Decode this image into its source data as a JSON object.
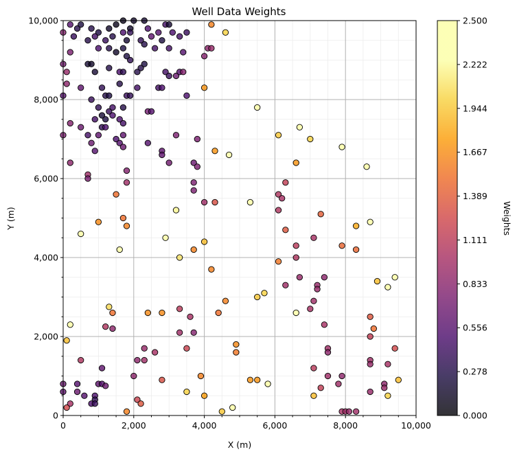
{
  "chart_data": {
    "type": "scatter",
    "title": "Well Data Weights",
    "xlabel": "X (m)",
    "ylabel": "Y (m)",
    "xlim": [
      0,
      10000
    ],
    "ylim": [
      0,
      10000
    ],
    "x_ticks": [
      "0",
      "2,000",
      "4,000",
      "6,000",
      "8,000",
      "10,000"
    ],
    "y_ticks": [
      "0",
      "2,000",
      "4,000",
      "6,000",
      "8,000",
      "10,000"
    ],
    "grid": {
      "major": true,
      "minor": true,
      "major_step": 2000,
      "minor_step": 500
    },
    "colormap": "inferno",
    "colorbar": {
      "label": "Weights",
      "range": [
        0,
        2.5
      ],
      "ticks": [
        "0.000",
        "0.278",
        "0.556",
        "0.833",
        "1.111",
        "1.389",
        "1.667",
        "1.944",
        "2.222",
        "2.500"
      ]
    },
    "points": [
      [
        0,
        9700,
        0.8
      ],
      [
        200,
        9900,
        0.55
      ],
      [
        400,
        9800,
        0.3
      ],
      [
        500,
        9900,
        0.25
      ],
      [
        800,
        9800,
        0.3
      ],
      [
        1000,
        9700,
        0.25
      ],
      [
        1300,
        9800,
        0.15
      ],
      [
        1500,
        9900,
        0.1
      ],
      [
        1700,
        10000,
        0.1
      ],
      [
        1900,
        9800,
        0.15
      ],
      [
        2000,
        10000,
        0.15
      ],
      [
        2300,
        10000,
        0.2
      ],
      [
        2400,
        9800,
        0.5
      ],
      [
        2700,
        9700,
        0.55
      ],
      [
        2900,
        9900,
        0.45
      ],
      [
        3000,
        9900,
        0.2
      ],
      [
        3100,
        9700,
        0.5
      ],
      [
        3500,
        9700,
        0.4
      ],
      [
        4200,
        9900,
        1.6
      ],
      [
        4600,
        9700,
        2.0
      ],
      [
        200,
        9200,
        0.75
      ],
      [
        300,
        9600,
        0.4
      ],
      [
        700,
        9500,
        0.3
      ],
      [
        900,
        9600,
        0.45
      ],
      [
        1200,
        9500,
        0.4
      ],
      [
        1400,
        9600,
        0.3
      ],
      [
        1700,
        9700,
        0.5
      ],
      [
        1900,
        9700,
        0.35
      ],
      [
        2500,
        9600,
        0.6
      ],
      [
        2800,
        9500,
        0.25
      ],
      [
        3300,
        9600,
        0.45
      ],
      [
        1000,
        9300,
        0.5
      ],
      [
        1300,
        9300,
        0.3
      ],
      [
        1500,
        9200,
        0.15
      ],
      [
        1700,
        9300,
        0.25
      ],
      [
        1800,
        9500,
        0.2
      ],
      [
        2200,
        9500,
        0.35
      ],
      [
        2300,
        9400,
        0.3
      ],
      [
        2600,
        9300,
        0.45
      ],
      [
        3000,
        9300,
        0.45
      ],
      [
        3400,
        9200,
        0.55
      ],
      [
        4100,
        9300,
        0.85
      ],
      [
        4200,
        9300,
        0.9
      ],
      [
        4000,
        9100,
        0.8
      ],
      [
        700,
        8900,
        0.2
      ],
      [
        800,
        8900,
        0.15
      ],
      [
        900,
        8700,
        0.2
      ],
      [
        1300,
        8800,
        0.3
      ],
      [
        1600,
        8700,
        0.5
      ],
      [
        1700,
        8700,
        0.35
      ],
      [
        2200,
        8800,
        0.3
      ],
      [
        2300,
        8900,
        0.25
      ],
      [
        2100,
        8700,
        0.3
      ],
      [
        2900,
        8700,
        0.45
      ],
      [
        3000,
        8600,
        0.4
      ],
      [
        3200,
        8600,
        0.65
      ],
      [
        3300,
        8700,
        0.55
      ],
      [
        3400,
        8700,
        0.8
      ],
      [
        0,
        8900,
        0.7
      ],
      [
        100,
        8700,
        0.9
      ],
      [
        1900,
        9000,
        0.35
      ],
      [
        1800,
        9100,
        0.25
      ],
      [
        100,
        8400,
        0.85
      ],
      [
        500,
        8300,
        0.6
      ],
      [
        1100,
        8300,
        0.35
      ],
      [
        1600,
        8400,
        0.3
      ],
      [
        2100,
        8300,
        0.45
      ],
      [
        2700,
        8300,
        0.45
      ],
      [
        2800,
        8300,
        0.5
      ],
      [
        1200,
        8100,
        0.3
      ],
      [
        1300,
        8100,
        0.25
      ],
      [
        1800,
        8100,
        0.4
      ],
      [
        1900,
        8100,
        0.35
      ],
      [
        3500,
        8100,
        0.5
      ],
      [
        4000,
        8300,
        1.7
      ],
      [
        0,
        8100,
        0.55
      ],
      [
        800,
        8000,
        0.4
      ],
      [
        1000,
        7800,
        0.35
      ],
      [
        1300,
        7700,
        0.4
      ],
      [
        1400,
        7600,
        0.5
      ],
      [
        1400,
        7800,
        0.45
      ],
      [
        1700,
        7800,
        0.3
      ],
      [
        1100,
        7600,
        0.2
      ],
      [
        1200,
        7500,
        0.25
      ],
      [
        1600,
        7500,
        0.5
      ],
      [
        2400,
        7700,
        0.7
      ],
      [
        2500,
        7700,
        0.55
      ],
      [
        200,
        7400,
        0.8
      ],
      [
        500,
        7300,
        0.65
      ],
      [
        900,
        7500,
        0.45
      ],
      [
        1100,
        7300,
        0.35
      ],
      [
        1200,
        7300,
        0.5
      ],
      [
        1700,
        7400,
        0.45
      ],
      [
        700,
        7100,
        0.45
      ],
      [
        1000,
        7100,
        0.6
      ],
      [
        1700,
        7100,
        0.6
      ],
      [
        1500,
        7000,
        0.5
      ],
      [
        1600,
        6900,
        0.55
      ],
      [
        1700,
        6800,
        0.65
      ],
      [
        0,
        7100,
        0.75
      ],
      [
        800,
        6900,
        0.65
      ],
      [
        900,
        6700,
        0.55
      ],
      [
        2400,
        6900,
        0.55
      ],
      [
        2800,
        6700,
        0.6
      ],
      [
        2800,
        6600,
        0.6
      ],
      [
        3200,
        7100,
        0.75
      ],
      [
        3800,
        7000,
        0.75
      ],
      [
        4300,
        6700,
        1.7
      ],
      [
        4700,
        6600,
        2.4
      ],
      [
        5500,
        7800,
        2.5
      ],
      [
        6100,
        7100,
        1.95
      ],
      [
        6700,
        7300,
        2.45
      ],
      [
        7000,
        7000,
        2.0
      ],
      [
        7900,
        6800,
        2.5
      ],
      [
        8600,
        6300,
        2.5
      ],
      [
        200,
        6400,
        0.85
      ],
      [
        700,
        6100,
        0.95
      ],
      [
        700,
        6000,
        0.75
      ],
      [
        1800,
        6200,
        0.8
      ],
      [
        1800,
        5900,
        0.95
      ],
      [
        3000,
        6400,
        0.7
      ],
      [
        3700,
        6400,
        0.65
      ],
      [
        3800,
        6300,
        0.75
      ],
      [
        3700,
        5900,
        0.75
      ],
      [
        3700,
        5700,
        0.75
      ],
      [
        6600,
        6400,
        1.7
      ],
      [
        6300,
        5900,
        1.15
      ],
      [
        6100,
        5600,
        1.05
      ],
      [
        6200,
        5500,
        1.0
      ],
      [
        6100,
        5200,
        1.05
      ],
      [
        4000,
        5400,
        0.95
      ],
      [
        4300,
        5400,
        1.3
      ],
      [
        5300,
        5400,
        2.5
      ],
      [
        1500,
        5600,
        1.5
      ],
      [
        3200,
        5200,
        2.2
      ],
      [
        1700,
        5000,
        1.5
      ],
      [
        1800,
        4800,
        1.6
      ],
      [
        1000,
        4900,
        1.65
      ],
      [
        500,
        4600,
        2.5
      ],
      [
        2900,
        4500,
        2.45
      ],
      [
        6300,
        4700,
        1.35
      ],
      [
        7100,
        4500,
        1.0
      ],
      [
        7300,
        5100,
        1.4
      ],
      [
        8300,
        4800,
        1.8
      ],
      [
        8700,
        4900,
        2.5
      ],
      [
        1600,
        4200,
        2.5
      ],
      [
        3700,
        4200,
        1.6
      ],
      [
        4000,
        4400,
        1.9
      ],
      [
        6600,
        4300,
        1.1
      ],
      [
        7900,
        4300,
        1.45
      ],
      [
        8300,
        4200,
        1.45
      ],
      [
        3300,
        4000,
        2.1
      ],
      [
        6600,
        4000,
        1.05
      ],
      [
        6100,
        3900,
        1.55
      ],
      [
        4200,
        3700,
        1.6
      ],
      [
        6700,
        3500,
        0.9
      ],
      [
        7400,
        3500,
        0.85
      ],
      [
        9400,
        3500,
        2.5
      ],
      [
        8900,
        3400,
        1.9
      ],
      [
        6300,
        3300,
        0.95
      ],
      [
        7200,
        3300,
        0.9
      ],
      [
        7200,
        3200,
        0.9
      ],
      [
        9200,
        3250,
        2.4
      ],
      [
        5700,
        3100,
        2.0
      ],
      [
        5500,
        3000,
        1.95
      ],
      [
        4600,
        2900,
        1.6
      ],
      [
        7100,
        2900,
        0.95
      ],
      [
        1300,
        2750,
        2.05
      ],
      [
        1400,
        2600,
        1.5
      ],
      [
        3300,
        2700,
        1.1
      ],
      [
        3600,
        2500,
        1.0
      ],
      [
        2400,
        2600,
        1.65
      ],
      [
        2800,
        2600,
        1.65
      ],
      [
        4400,
        2600,
        1.5
      ],
      [
        6600,
        2600,
        2.4
      ],
      [
        7000,
        2700,
        1.0
      ],
      [
        8700,
        2500,
        1.35
      ],
      [
        200,
        2300,
        2.5
      ],
      [
        1200,
        2250,
        1.05
      ],
      [
        1400,
        2200,
        0.85
      ],
      [
        7400,
        2300,
        1.0
      ],
      [
        8800,
        2200,
        1.5
      ],
      [
        3300,
        2100,
        0.95
      ],
      [
        3700,
        2100,
        0.8
      ],
      [
        8700,
        2000,
        1.15
      ],
      [
        100,
        1900,
        1.9
      ],
      [
        4900,
        1800,
        1.65
      ],
      [
        4900,
        1600,
        1.55
      ],
      [
        7500,
        1700,
        0.95
      ],
      [
        7500,
        1600,
        0.85
      ],
      [
        9400,
        1700,
        1.25
      ],
      [
        2300,
        1700,
        0.9
      ],
      [
        2600,
        1600,
        1.0
      ],
      [
        3500,
        1700,
        1.2
      ],
      [
        500,
        1400,
        1.05
      ],
      [
        2100,
        1400,
        0.85
      ],
      [
        2300,
        1400,
        0.95
      ],
      [
        1100,
        1200,
        0.6
      ],
      [
        7100,
        1200,
        1.1
      ],
      [
        8700,
        1400,
        0.95
      ],
      [
        8700,
        1300,
        0.9
      ],
      [
        9200,
        1300,
        1.0
      ],
      [
        2000,
        1000,
        0.85
      ],
      [
        2800,
        900,
        1.3
      ],
      [
        3900,
        1000,
        1.6
      ],
      [
        5300,
        900,
        1.7
      ],
      [
        5500,
        900,
        1.7
      ],
      [
        5800,
        800,
        2.45
      ],
      [
        7500,
        1000,
        0.95
      ],
      [
        7900,
        1000,
        0.85
      ],
      [
        7800,
        800,
        0.95
      ],
      [
        9500,
        900,
        1.9
      ],
      [
        0,
        800,
        0.65
      ],
      [
        400,
        800,
        0.55
      ],
      [
        1000,
        800,
        0.6
      ],
      [
        1100,
        800,
        0.55
      ],
      [
        1200,
        750,
        0.65
      ],
      [
        9100,
        800,
        0.85
      ],
      [
        9100,
        700,
        0.9
      ],
      [
        400,
        600,
        0.65
      ],
      [
        0,
        600,
        0.6
      ],
      [
        600,
        500,
        0.55
      ],
      [
        900,
        500,
        0.5
      ],
      [
        900,
        400,
        0.35
      ],
      [
        800,
        300,
        0.5
      ],
      [
        900,
        300,
        0.4
      ],
      [
        200,
        300,
        1.0
      ],
      [
        2100,
        400,
        1.2
      ],
      [
        2200,
        300,
        1.35
      ],
      [
        3500,
        600,
        2.0
      ],
      [
        4000,
        500,
        1.75
      ],
      [
        7300,
        700,
        1.15
      ],
      [
        7100,
        500,
        1.9
      ],
      [
        8700,
        600,
        0.9
      ],
      [
        9200,
        500,
        2.0
      ],
      [
        100,
        200,
        1.25
      ],
      [
        1800,
        100,
        1.6
      ],
      [
        4500,
        100,
        1.95
      ],
      [
        4800,
        200,
        2.45
      ],
      [
        7900,
        100,
        1.0
      ],
      [
        8000,
        100,
        0.95
      ],
      [
        8100,
        100,
        0.9
      ],
      [
        8300,
        100,
        0.95
      ]
    ]
  }
}
